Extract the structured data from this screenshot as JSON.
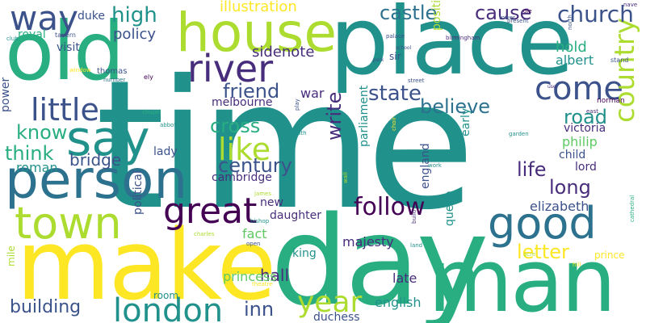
{
  "palette": {
    "dark_purple": "#440154",
    "indigo": "#472d7b",
    "blue": "#3b528b",
    "steel": "#2c728e",
    "teal": "#21918c",
    "green_teal": "#28ae80",
    "green": "#5ec962",
    "lime": "#addc30",
    "yellow": "#fde725"
  },
  "words": [
    {
      "text": "time",
      "color": "teal"
    },
    {
      "text": "place",
      "color": "teal"
    },
    {
      "text": "make",
      "color": "yellow"
    },
    {
      "text": "day",
      "color": "green_teal"
    },
    {
      "text": "man",
      "color": "green_teal"
    },
    {
      "text": "old",
      "color": "green_teal"
    },
    {
      "text": "house",
      "color": "lime"
    },
    {
      "text": "person",
      "color": "steel"
    },
    {
      "text": "say",
      "color": "teal"
    },
    {
      "text": "town",
      "color": "lime"
    },
    {
      "text": "good",
      "color": "steel"
    },
    {
      "text": "great",
      "color": "dark_purple"
    },
    {
      "text": "river",
      "color": "indigo"
    },
    {
      "text": "little",
      "color": "blue"
    },
    {
      "text": "way",
      "color": "blue"
    },
    {
      "text": "come",
      "color": "blue"
    },
    {
      "text": "country",
      "color": "lime"
    },
    {
      "text": "london",
      "color": "teal"
    },
    {
      "text": "like",
      "color": "lime"
    },
    {
      "text": "year",
      "color": "lime"
    },
    {
      "text": "follow",
      "color": "dark_purple"
    },
    {
      "text": "church",
      "color": "blue"
    },
    {
      "text": "high",
      "color": "teal"
    },
    {
      "text": "cause",
      "color": "indigo"
    },
    {
      "text": "castle",
      "color": "steel"
    },
    {
      "text": "friend",
      "color": "blue"
    },
    {
      "text": "state",
      "color": "blue"
    },
    {
      "text": "believe",
      "color": "steel"
    },
    {
      "text": "road",
      "color": "teal"
    },
    {
      "text": "cross",
      "color": "green_teal"
    },
    {
      "text": "century",
      "color": "blue"
    },
    {
      "text": "know",
      "color": "green_teal"
    },
    {
      "text": "think",
      "color": "green_teal"
    },
    {
      "text": "bridge",
      "color": "blue"
    },
    {
      "text": "building",
      "color": "blue"
    },
    {
      "text": "life",
      "color": "indigo"
    },
    {
      "text": "long",
      "color": "indigo"
    },
    {
      "text": "letter",
      "color": "yellow"
    },
    {
      "text": "write",
      "color": "indigo"
    },
    {
      "text": "inn",
      "color": "blue"
    },
    {
      "text": "policy",
      "color": "blue"
    },
    {
      "text": "sidenote",
      "color": "indigo"
    },
    {
      "text": "illustration",
      "color": "yellow"
    },
    {
      "text": "albert",
      "color": "teal"
    },
    {
      "text": "hold",
      "color": "green_teal"
    },
    {
      "text": "visit",
      "color": "blue"
    },
    {
      "text": "royal",
      "color": "green_teal"
    },
    {
      "text": "duke",
      "color": "blue"
    },
    {
      "text": "melbourne",
      "color": "indigo"
    },
    {
      "text": "war",
      "color": "indigo"
    },
    {
      "text": "roman",
      "color": "teal"
    },
    {
      "text": "lady",
      "color": "blue"
    },
    {
      "text": "cambridge",
      "color": "indigo"
    },
    {
      "text": "new",
      "color": "indigo"
    },
    {
      "text": "daughter",
      "color": "indigo"
    },
    {
      "text": "fact",
      "color": "green"
    },
    {
      "text": "hall",
      "color": "indigo"
    },
    {
      "text": "english",
      "color": "teal"
    },
    {
      "text": "duchess",
      "color": "blue"
    },
    {
      "text": "princess",
      "color": "green"
    },
    {
      "text": "late",
      "color": "indigo"
    },
    {
      "text": "king",
      "color": "teal"
    },
    {
      "text": "majesty",
      "color": "indigo"
    },
    {
      "text": "elizabeth",
      "color": "blue"
    },
    {
      "text": "philip",
      "color": "green"
    },
    {
      "text": "victoria",
      "color": "indigo"
    },
    {
      "text": "child",
      "color": "blue"
    },
    {
      "text": "lord",
      "color": "indigo"
    },
    {
      "text": "queen",
      "color": "teal"
    },
    {
      "text": "parliament",
      "color": "teal"
    },
    {
      "text": "england",
      "color": "blue"
    },
    {
      "text": "early",
      "color": "teal"
    },
    {
      "text": "position",
      "color": "lime"
    },
    {
      "text": "political",
      "color": "blue"
    },
    {
      "text": "power",
      "color": "blue"
    },
    {
      "text": "mile",
      "color": "lime"
    },
    {
      "text": "room",
      "color": "teal"
    },
    {
      "text": "prince",
      "color": "yellow"
    },
    {
      "text": "sir",
      "color": "blue"
    },
    {
      "text": "thomas",
      "color": "blue"
    },
    {
      "text": "ely",
      "color": "dark_purple"
    },
    {
      "text": "number",
      "color": "steel"
    },
    {
      "text": "window",
      "color": "yellow"
    },
    {
      "text": "tavern",
      "color": "blue"
    },
    {
      "text": "club",
      "color": "teal"
    },
    {
      "text": "chapel",
      "color": "green_teal"
    },
    {
      "text": "abbot",
      "color": "teal"
    },
    {
      "text": "play",
      "color": "blue"
    },
    {
      "text": "south",
      "color": "teal"
    },
    {
      "text": "choir",
      "color": "yellow"
    },
    {
      "text": "street",
      "color": "blue"
    },
    {
      "text": "garden",
      "color": "teal"
    },
    {
      "text": "work",
      "color": "teal"
    },
    {
      "text": "theatre",
      "color": "yellow"
    },
    {
      "text": "bishop",
      "color": "teal"
    },
    {
      "text": "charles",
      "color": "lime"
    },
    {
      "text": "james",
      "color": "lime"
    },
    {
      "text": "open",
      "color": "blue"
    },
    {
      "text": "wall",
      "color": "lime"
    },
    {
      "text": "build",
      "color": "indigo"
    },
    {
      "text": "west",
      "color": "teal"
    },
    {
      "text": "land",
      "color": "teal"
    },
    {
      "text": "acre",
      "color": "lime"
    },
    {
      "text": "hill",
      "color": "yellow"
    },
    {
      "text": "cathedral",
      "color": "green_teal"
    },
    {
      "text": "norman",
      "color": "dark_purple"
    },
    {
      "text": "east",
      "color": "indigo"
    },
    {
      "text": "stand",
      "color": "blue"
    },
    {
      "text": "north",
      "color": "blue"
    },
    {
      "text": "tower",
      "color": "blue"
    },
    {
      "text": "die",
      "color": "dark_purple"
    },
    {
      "text": "present",
      "color": "blue"
    },
    {
      "text": "nave",
      "color": "indigo"
    },
    {
      "text": "palace",
      "color": "blue"
    },
    {
      "text": "school",
      "color": "blue"
    },
    {
      "text": "birmingham",
      "color": "indigo"
    },
    {
      "text": "park",
      "color": "blue"
    },
    {
      "text": "use",
      "color": "indigo"
    }
  ]
}
